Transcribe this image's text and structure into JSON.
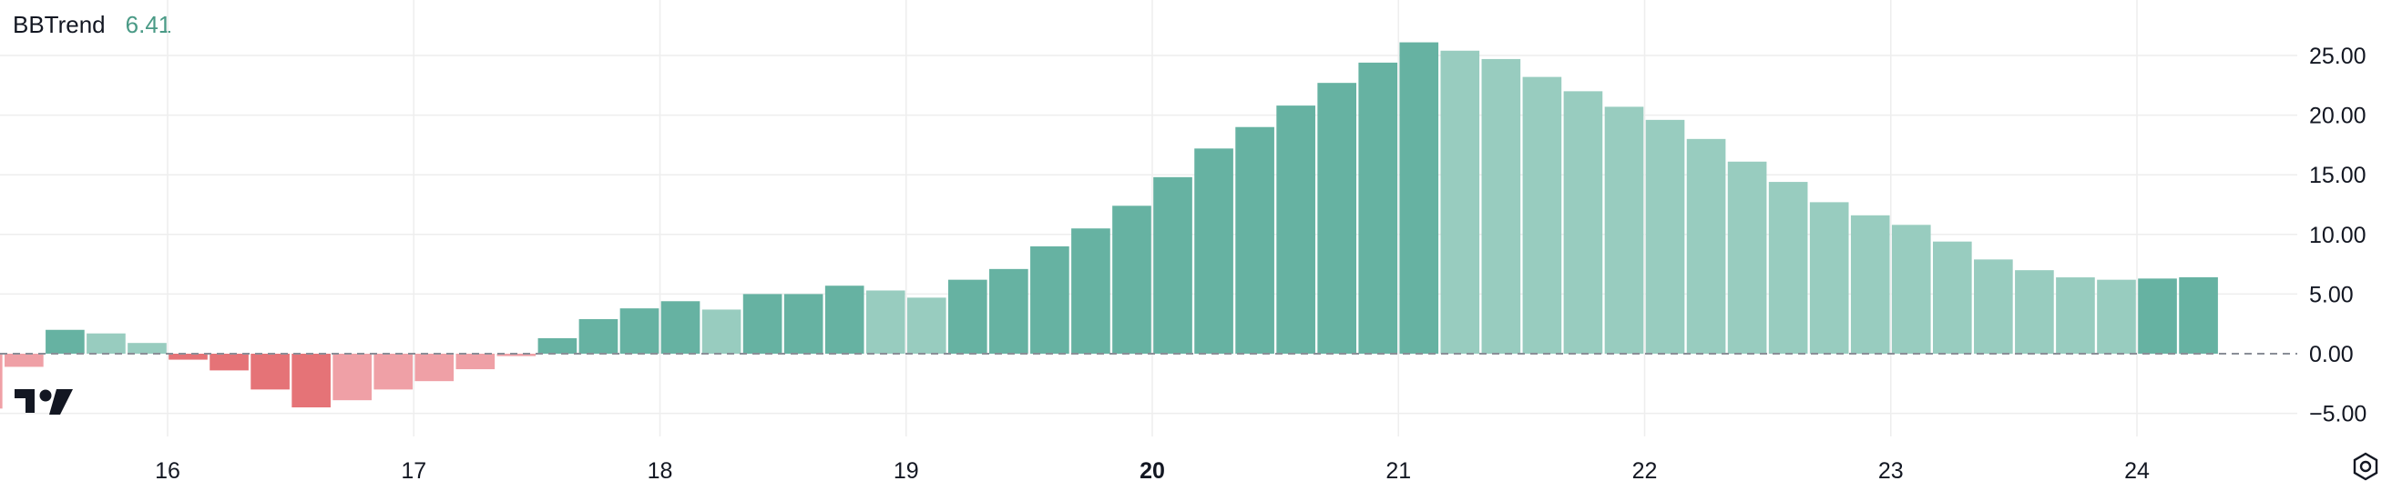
{
  "legend": {
    "name": "BBTrend",
    "value": "6.41"
  },
  "colors": {
    "pos_dark": "#66b2a2",
    "pos_light": "#98ccbf",
    "neg_dark": "#e57377",
    "neg_light": "#efa0a6",
    "grid": "#eeeeee",
    "zero_line": "#8a8e97"
  },
  "chart_data": {
    "type": "bar",
    "title": "",
    "xlabel": "",
    "ylabel": "",
    "ylim": [
      -7,
      28
    ],
    "y_ticks": [
      "25.00",
      "20.00",
      "15.00",
      "10.00",
      "5.00",
      "0.00",
      "−5.00"
    ],
    "y_tick_values": [
      25,
      20,
      15,
      10,
      5,
      0,
      -5
    ],
    "x_ticks": [
      {
        "label": "16",
        "day": 16,
        "bold": false
      },
      {
        "label": "17",
        "day": 17,
        "bold": false
      },
      {
        "label": "18",
        "day": 18,
        "bold": false
      },
      {
        "label": "19",
        "day": 19,
        "bold": false
      },
      {
        "label": "20",
        "day": 20,
        "bold": true
      },
      {
        "label": "21",
        "day": 21,
        "bold": false
      },
      {
        "label": "22",
        "day": 22,
        "bold": false
      },
      {
        "label": "23",
        "day": 23,
        "bold": false
      },
      {
        "label": "24",
        "day": 24,
        "bold": false
      }
    ],
    "bars_per_day": 6,
    "first_bar_day": 15.25,
    "series": [
      {
        "values": [
          -4.6,
          -1.1,
          2.0,
          1.7,
          0.9,
          -0.5,
          -1.4,
          -3.0,
          -4.5,
          -3.9,
          -3.0,
          -2.3,
          -1.3,
          -0.2,
          1.3,
          2.9,
          3.8,
          4.4,
          3.7,
          5.0,
          5.0,
          5.7,
          5.3,
          4.7,
          6.2,
          7.1,
          9.0,
          10.5,
          12.4,
          14.8,
          17.2,
          19.0,
          20.8,
          22.7,
          24.4,
          26.1,
          25.4,
          24.7,
          23.2,
          22.0,
          20.7,
          19.6,
          18.0,
          16.1,
          14.4,
          12.7,
          11.6,
          10.8,
          9.4,
          7.9,
          7.0,
          6.4,
          6.2,
          6.3,
          6.41
        ],
        "shade": [
          "light",
          "light",
          "dark",
          "light",
          "light",
          "dark",
          "dark",
          "dark",
          "dark",
          "light",
          "light",
          "light",
          "light",
          "light",
          "dark",
          "dark",
          "dark",
          "dark",
          "light",
          "dark",
          "dark",
          "dark",
          "light",
          "light",
          "dark",
          "dark",
          "dark",
          "dark",
          "dark",
          "dark",
          "dark",
          "dark",
          "dark",
          "dark",
          "dark",
          "dark",
          "light",
          "light",
          "light",
          "light",
          "light",
          "light",
          "light",
          "light",
          "light",
          "light",
          "light",
          "light",
          "light",
          "light",
          "light",
          "light",
          "light",
          "dark",
          "dark"
        ]
      }
    ]
  }
}
